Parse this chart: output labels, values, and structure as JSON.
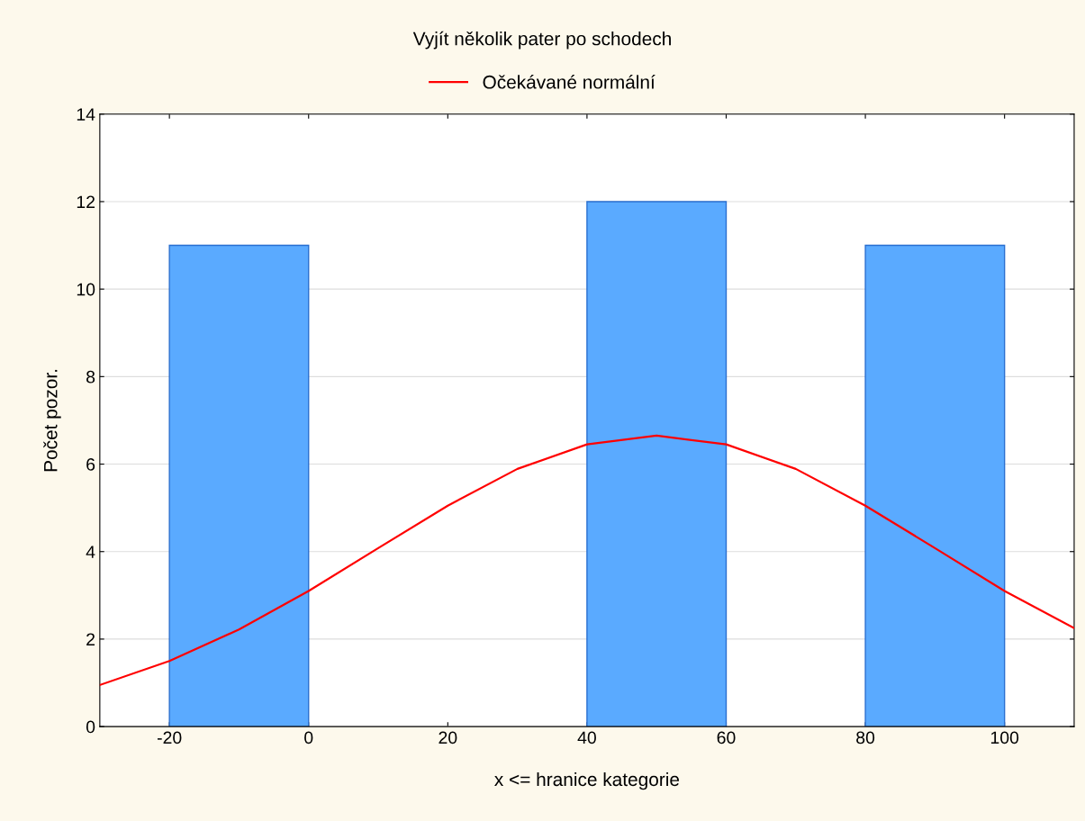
{
  "chart_data": {
    "type": "histogram",
    "title": "Vyjít několik pater po schodech",
    "xlabel": "x <= hranice kategorie",
    "ylabel": "Počet pozor.",
    "bins": [
      -20,
      0,
      20,
      40,
      60,
      80,
      100
    ],
    "values": [
      11,
      0,
      0,
      12,
      0,
      11
    ],
    "color": "#5aaaff",
    "series": [
      {
        "name": "Očekávané normální",
        "type": "line",
        "color": "#ff0000",
        "x": [
          -30,
          -20,
          -10,
          0,
          10,
          20,
          30,
          40,
          50,
          60,
          70,
          80,
          90,
          100,
          110
        ],
        "values": [
          0.95,
          1.5,
          2.22,
          3.1,
          4.08,
          5.05,
          5.89,
          6.45,
          6.65,
          6.45,
          5.89,
          5.05,
          4.08,
          3.1,
          2.25
        ]
      }
    ],
    "xlim": [
      -30,
      110
    ],
    "xticks": [
      -20,
      0,
      20,
      40,
      60,
      80,
      100
    ],
    "ylim": [
      0,
      14
    ],
    "yticks": [
      0,
      2,
      4,
      6,
      8,
      10,
      12,
      14
    ],
    "grid": "y",
    "legend": "top",
    "marker": "none",
    "line_style": "solid"
  }
}
